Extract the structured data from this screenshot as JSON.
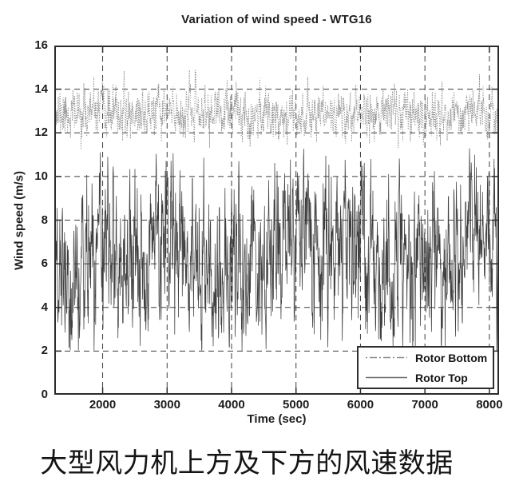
{
  "chart_data": {
    "type": "line",
    "title": "Variation of wind speed - WTG16",
    "xlabel": "Time (sec)",
    "ylabel": "Wind speed (m/s)",
    "xlim": [
      1250,
      8150
    ],
    "ylim": [
      0,
      16
    ],
    "xticks": [
      2000,
      3000,
      4000,
      5000,
      6000,
      7000,
      8000
    ],
    "yticks": [
      0,
      2,
      4,
      6,
      8,
      10,
      12,
      14,
      16
    ],
    "grid": "dashed",
    "grid_color": "#3d3d3d",
    "axis_color": "#2b2b2b",
    "legend_position": "bottom-right",
    "series": [
      {
        "name": "Rotor Bottom",
        "line_style": "dash-dot",
        "color": "#8c8c8c",
        "mean": 12.9,
        "std": 0.55,
        "min": 11.2,
        "max": 14.9,
        "ar": 0.45,
        "points": 1700,
        "seed": 11
      },
      {
        "name": "Rotor Top",
        "line_style": "solid",
        "color": "#3f3f3f",
        "mean": 6.4,
        "std": 1.85,
        "min": 2.0,
        "max": 11.3,
        "ar": 0.6,
        "points": 1700,
        "seed": 29,
        "slow_amp": 0.85,
        "slow_period": 2600
      }
    ]
  },
  "caption": {
    "text": "大型风力机上方及下方的风速数据"
  }
}
